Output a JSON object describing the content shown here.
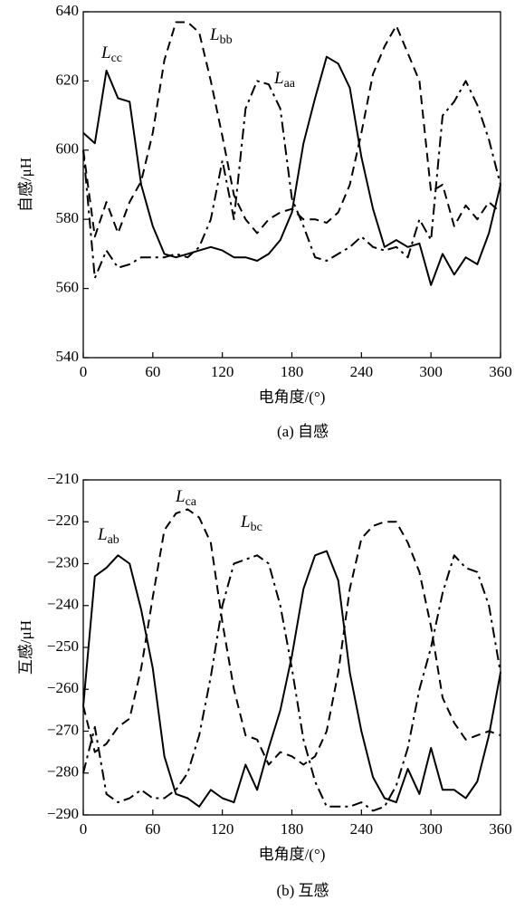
{
  "chart_data": [
    {
      "type": "line",
      "caption": "(a) 自感",
      "xlabel": "电角度/(°)",
      "ylabel": "自感/μH",
      "x": [
        0,
        10,
        20,
        30,
        40,
        50,
        60,
        70,
        80,
        90,
        100,
        110,
        120,
        130,
        140,
        150,
        160,
        170,
        180,
        190,
        200,
        210,
        220,
        230,
        240,
        250,
        260,
        270,
        280,
        290,
        300,
        310,
        320,
        330,
        340,
        350,
        360
      ],
      "xlim": [
        0,
        360
      ],
      "xticks": [
        0,
        60,
        120,
        180,
        240,
        300,
        360
      ],
      "ylim": [
        540,
        640
      ],
      "yticks": [
        540,
        560,
        580,
        600,
        620,
        640
      ],
      "series": [
        {
          "name": "L",
          "subscript": "cc",
          "color": "#000000",
          "dash": "solid",
          "values": [
            605,
            602,
            623,
            615,
            614,
            590,
            578,
            570,
            569,
            570,
            571,
            572,
            571,
            569,
            569,
            568,
            570,
            574,
            582,
            602,
            615,
            627,
            625,
            618,
            598,
            583,
            572,
            574,
            572,
            573,
            561,
            570,
            564,
            569,
            567,
            576,
            590
          ]
        },
        {
          "name": "L",
          "subscript": "bb",
          "color": "#000000",
          "dash": "dashed",
          "values": [
            600,
            575,
            585,
            576,
            585,
            591,
            605,
            626,
            637,
            637,
            634,
            620,
            604,
            587,
            580,
            576,
            580,
            582,
            583,
            580,
            580,
            579,
            582,
            590,
            605,
            622,
            630,
            636,
            628,
            620,
            588,
            590,
            578,
            584,
            580,
            585,
            582
          ]
        },
        {
          "name": "L",
          "subscript": "aa",
          "color": "#000000",
          "dash": "dashdot",
          "values": [
            600,
            563,
            571,
            566,
            567,
            569,
            569,
            569,
            570,
            569,
            572,
            580,
            597,
            580,
            612,
            620,
            619,
            612,
            586,
            578,
            569,
            568,
            570,
            572,
            575,
            572,
            571,
            572,
            569,
            580,
            574,
            610,
            614,
            620,
            613,
            603,
            590
          ]
        }
      ]
    },
    {
      "type": "line",
      "caption": "(b) 互感",
      "xlabel": "电角度/(°)",
      "ylabel": "互感/μH",
      "x": [
        0,
        10,
        20,
        30,
        40,
        50,
        60,
        70,
        80,
        90,
        100,
        110,
        120,
        130,
        140,
        150,
        160,
        170,
        180,
        190,
        200,
        210,
        220,
        230,
        240,
        250,
        260,
        270,
        280,
        290,
        300,
        310,
        320,
        330,
        340,
        350,
        360
      ],
      "xlim": [
        0,
        360
      ],
      "xticks": [
        0,
        60,
        120,
        180,
        240,
        300,
        360
      ],
      "ylim": [
        -290,
        -210
      ],
      "yticks": [
        {
          "value": -290,
          "label": "−290"
        },
        {
          "value": -280,
          "label": "−280"
        },
        {
          "value": -270,
          "label": "−270"
        },
        {
          "value": -260,
          "label": "−260"
        },
        {
          "value": -250,
          "label": "−250"
        },
        {
          "value": -240,
          "label": "−240"
        },
        {
          "value": -230,
          "label": "−230"
        },
        {
          "value": -220,
          "label": "−220"
        },
        {
          "value": -210,
          "label": "−210"
        }
      ],
      "series": [
        {
          "name": "L",
          "subscript": "ab",
          "color": "#000000",
          "dash": "solid",
          "values": [
            -264,
            -233,
            -231,
            -228,
            -230,
            -241,
            -255,
            -276,
            -285,
            -286,
            -288,
            -284,
            -286,
            -287,
            -278,
            -284,
            -274,
            -265,
            -252,
            -236,
            -228,
            -227,
            -234,
            -256,
            -270,
            -281,
            -286,
            -287,
            -279,
            -285,
            -274,
            -284,
            -284,
            -286,
            -282,
            -271,
            -256
          ]
        },
        {
          "name": "L",
          "subscript": "ca",
          "color": "#000000",
          "dash": "dashed",
          "values": [
            -264,
            -275,
            -273,
            -269,
            -267,
            -255,
            -238,
            -222,
            -218,
            -217,
            -219,
            -225,
            -244,
            -260,
            -271,
            -272,
            -278,
            -275,
            -276,
            -278,
            -276,
            -270,
            -256,
            -236,
            -224,
            -221,
            -220,
            -220,
            -225,
            -232,
            -245,
            -262,
            -268,
            -272,
            -271,
            -270,
            -271
          ]
        },
        {
          "name": "L",
          "subscript": "bc",
          "color": "#000000",
          "dash": "dashdot",
          "values": [
            -280,
            -269,
            -285,
            -287,
            -286,
            -284,
            -286,
            -286,
            -284,
            -280,
            -271,
            -257,
            -240,
            -230,
            -229,
            -228,
            -230,
            -240,
            -255,
            -272,
            -282,
            -288,
            -288,
            -288,
            -287,
            -289,
            -288,
            -283,
            -274,
            -260,
            -250,
            -237,
            -228,
            -231,
            -232,
            -240,
            -256
          ]
        }
      ]
    }
  ]
}
